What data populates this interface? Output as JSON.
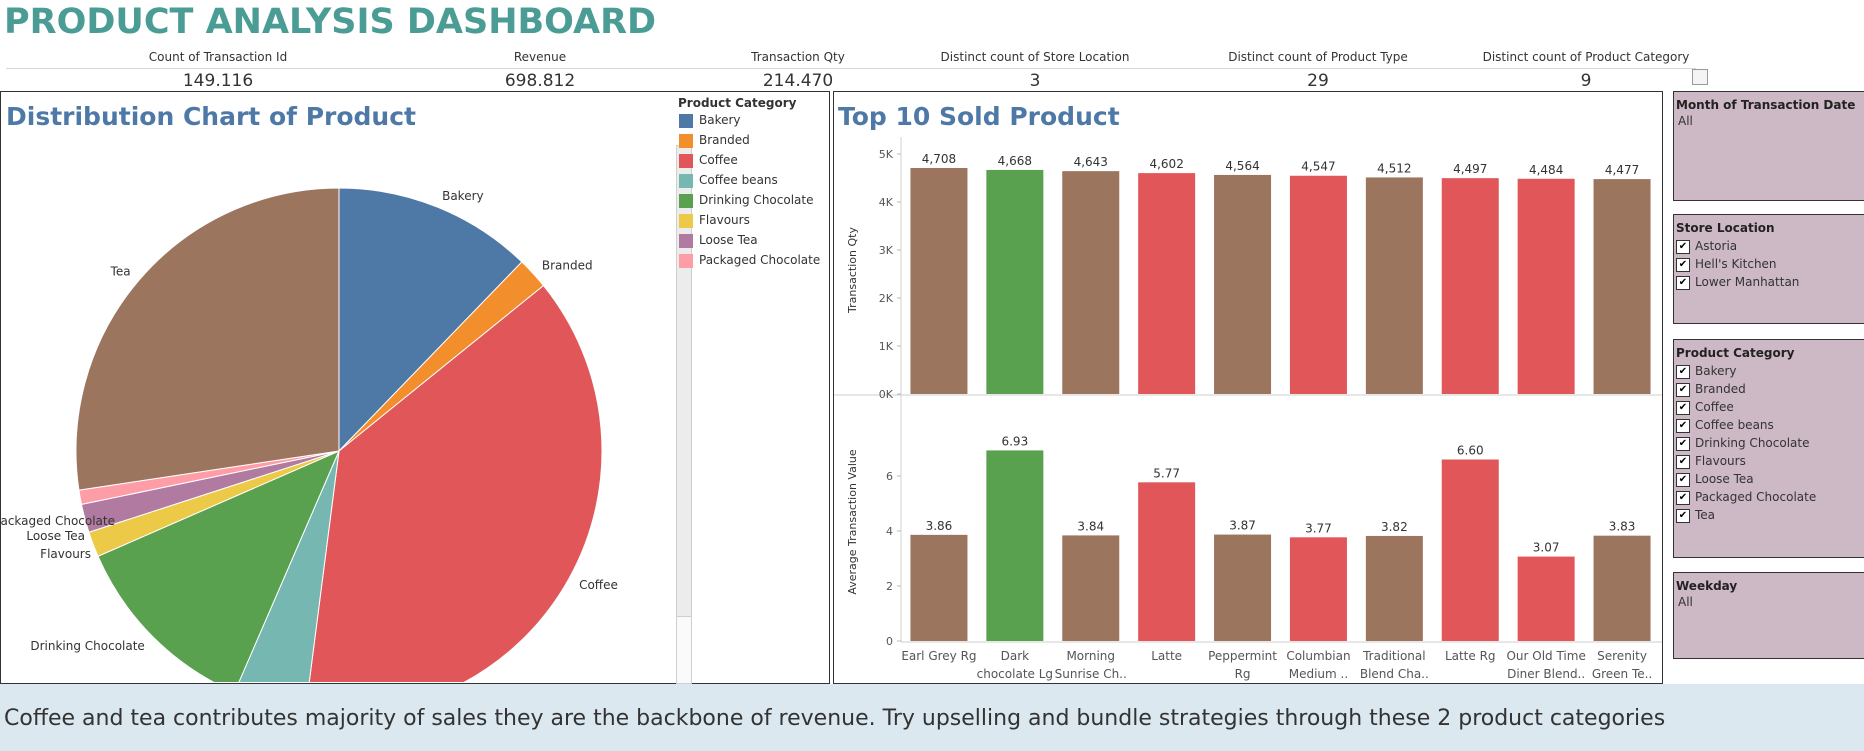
{
  "dashboard": {
    "title": "PRODUCT ANALYSIS DASHBOARD"
  },
  "kpis": [
    {
      "label": "Count of Transaction Id",
      "value": "149,116"
    },
    {
      "label": "Revenue",
      "value": "698,812"
    },
    {
      "label": "Transaction Qty",
      "value": "214,470"
    },
    {
      "label": "Distinct count of Store Location",
      "value": "3"
    },
    {
      "label": "Distinct count of Product Type",
      "value": "29"
    },
    {
      "label": "Distinct count of Product Category",
      "value": "9"
    }
  ],
  "pie_panel": {
    "title": "Distribution Chart of Product",
    "legend_title": "Product Category",
    "legend": [
      {
        "label": "Bakery",
        "color": "#4e79a7"
      },
      {
        "label": "Branded",
        "color": "#f28e2b"
      },
      {
        "label": "Coffee",
        "color": "#e15759"
      },
      {
        "label": "Coffee beans",
        "color": "#76b7b2"
      },
      {
        "label": "Drinking Chocolate",
        "color": "#59a14f"
      },
      {
        "label": "Flavours",
        "color": "#edc948"
      },
      {
        "label": "Loose Tea",
        "color": "#b07aa1"
      },
      {
        "label": "Packaged Chocolate",
        "color": "#ff9da7"
      }
    ]
  },
  "bar_panel": {
    "title": "Top 10 Sold Product"
  },
  "filters": {
    "month": {
      "title": "Month of Transaction Date",
      "value": "All"
    },
    "store": {
      "title": "Store Location",
      "items": [
        "Astoria",
        "Hell's Kitchen",
        "Lower Manhattan"
      ]
    },
    "category": {
      "title": "Product Category",
      "items": [
        "Bakery",
        "Branded",
        "Coffee",
        "Coffee beans",
        "Drinking Chocolate",
        "Flavours",
        "Loose Tea",
        "Packaged Chocolate",
        "Tea"
      ]
    },
    "weekday": {
      "title": "Weekday",
      "value": "All"
    }
  },
  "banner": {
    "text": "Coffee and tea contributes majority of sales they are the backbone of revenue. Try upselling and bundle strategies through these 2 product categories"
  },
  "chart_data": [
    {
      "type": "pie",
      "title": "Distribution Chart of Product",
      "legend_title": "Product Category",
      "categories": [
        "Bakery",
        "Branded",
        "Coffee",
        "Coffee beans",
        "Drinking Chocolate",
        "Flavours",
        "Loose Tea",
        "Packaged Chocolate",
        "Tea"
      ],
      "values": [
        12.6,
        2.0,
        39.0,
        4.6,
        12.3,
        1.6,
        1.8,
        0.9,
        28.2
      ],
      "colors": [
        "#4e79a7",
        "#f28e2b",
        "#e15759",
        "#76b7b2",
        "#59a14f",
        "#edc948",
        "#b07aa1",
        "#ff9da7",
        "#9c755f"
      ],
      "slice_labels": [
        "Bakery",
        "Branded",
        "Coffee",
        "",
        "Drinking Chocolate",
        "Flavours",
        "Loose Tea",
        "Packaged Chocolate",
        "Tea"
      ]
    },
    {
      "type": "bar",
      "categories": [
        "Earl Grey Rg",
        "Dark chocolate Lg",
        "Morning Sunrise Ch..",
        "Latte",
        "Peppermint Rg",
        "Columbian Medium ..",
        "Traditional Blend Cha..",
        "Latte Rg",
        "Our Old Time Diner Blend..",
        "Serenity Green Te.."
      ],
      "category_lines": [
        [
          "Earl Grey Rg"
        ],
        [
          "Dark",
          "chocolate Lg"
        ],
        [
          "Morning",
          "Sunrise Ch.."
        ],
        [
          "Latte"
        ],
        [
          "Peppermint",
          "Rg"
        ],
        [
          "Columbian",
          "Medium .."
        ],
        [
          "Traditional",
          "Blend Cha.."
        ],
        [
          "Latte Rg"
        ],
        [
          "Our Old Time",
          "Diner Blend.."
        ],
        [
          "Serenity",
          "Green Te.."
        ]
      ],
      "bar_colors": [
        "#9c755f",
        "#59a14f",
        "#9c755f",
        "#e15759",
        "#9c755f",
        "#e15759",
        "#9c755f",
        "#e15759",
        "#e15759",
        "#9c755f"
      ],
      "panes": [
        {
          "ylabel": "Transaction Qty",
          "values": [
            4708,
            4668,
            4643,
            4602,
            4564,
            4547,
            4512,
            4497,
            4484,
            4477
          ],
          "value_labels": [
            "4,708",
            "4,668",
            "4,643",
            "4,602",
            "4,564",
            "4,547",
            "4,512",
            "4,497",
            "4,484",
            "4,477"
          ],
          "ylim": [
            0,
            5000
          ],
          "ticks": [
            0,
            1000,
            2000,
            3000,
            4000,
            5000
          ],
          "tick_labels": [
            "0K",
            "1K",
            "2K",
            "3K",
            "4K",
            "5K"
          ]
        },
        {
          "ylabel": "Average Transaction Value",
          "values": [
            3.86,
            6.93,
            3.84,
            5.77,
            3.87,
            3.77,
            3.82,
            6.6,
            3.07,
            3.83
          ],
          "value_labels": [
            "3.86",
            "6.93",
            "3.84",
            "5.77",
            "3.87",
            "3.77",
            "3.82",
            "6.60",
            "3.07",
            "3.83"
          ],
          "ylim": [
            0,
            7
          ],
          "ticks": [
            0,
            2,
            4,
            6
          ],
          "tick_labels": [
            "0",
            "2",
            "4",
            "6"
          ]
        }
      ]
    }
  ]
}
